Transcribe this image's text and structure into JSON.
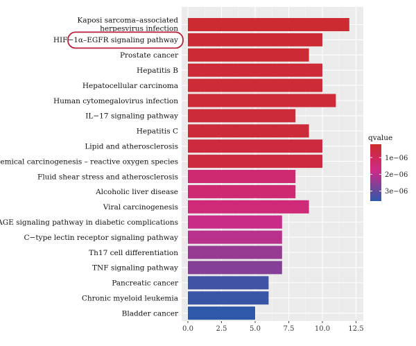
{
  "chart_data": {
    "type": "bar",
    "orientation": "horizontal",
    "categories": [
      [
        "Kaposi sarcoma–associated",
        "herpesvirus infection"
      ],
      [
        "HIF−1α–EGFR signaling pathway"
      ],
      [
        "Prostate cancer"
      ],
      [
        "Hepatitis B"
      ],
      [
        "Hepatocellular carcinoma"
      ],
      [
        "Human cytomegalovirus infection"
      ],
      [
        "IL−17 signaling pathway"
      ],
      [
        "Hepatitis C"
      ],
      [
        "Lipid and atherosclerosis"
      ],
      [
        "Chemical carcinogenesis – reactive oxygen species"
      ],
      [
        "Fluid shear stress and atherosclerosis"
      ],
      [
        "Alcoholic liver disease"
      ],
      [
        "Viral carcinogenesis"
      ],
      [
        "AGE–RAGE signaling pathway in diabetic complications"
      ],
      [
        "C−type lectin receptor signaling pathway"
      ],
      [
        "Th17 cell differentiation"
      ],
      [
        "TNF signaling pathway"
      ],
      [
        "Pancreatic cancer"
      ],
      [
        "Chronic myeloid leukemia"
      ],
      [
        "Bladder cancer"
      ]
    ],
    "values": [
      12,
      10,
      9,
      10,
      10,
      11,
      8,
      9,
      10,
      10,
      8,
      8,
      9,
      7,
      7,
      7,
      7,
      6,
      6,
      5
    ],
    "qvalues": [
      3e-07,
      3.5e-07,
      3.5e-07,
      4e-07,
      4e-07,
      4e-07,
      4.5e-07,
      4.5e-07,
      5e-07,
      5e-07,
      1.4e-06,
      1.4e-06,
      1.5e-06,
      1.8e-06,
      2e-06,
      2.4e-06,
      2.6e-06,
      3.4e-06,
      3.5e-06,
      3.6e-06
    ],
    "x_ticks": [
      "0.0",
      "2.5",
      "5.0",
      "7.5",
      "10.0",
      "12.5"
    ],
    "xlim": [
      0,
      12.5
    ],
    "highlighted_category": "HIF−1α–EGFR signaling pathway",
    "legend": {
      "title": "qvalue",
      "ticks": [
        "1e−06",
        "2e−06",
        "3e−06"
      ],
      "tick_values": [
        1e-06,
        2e-06,
        3e-06
      ],
      "range": [
        2e-07,
        3.6e-06
      ],
      "placement": "right"
    },
    "colors": {
      "low_q": "#cc2b2b",
      "mid_q": "#cf2a86",
      "high_q": "#3058a8",
      "highlight_outline": "#b5223a"
    },
    "grid": true
  }
}
